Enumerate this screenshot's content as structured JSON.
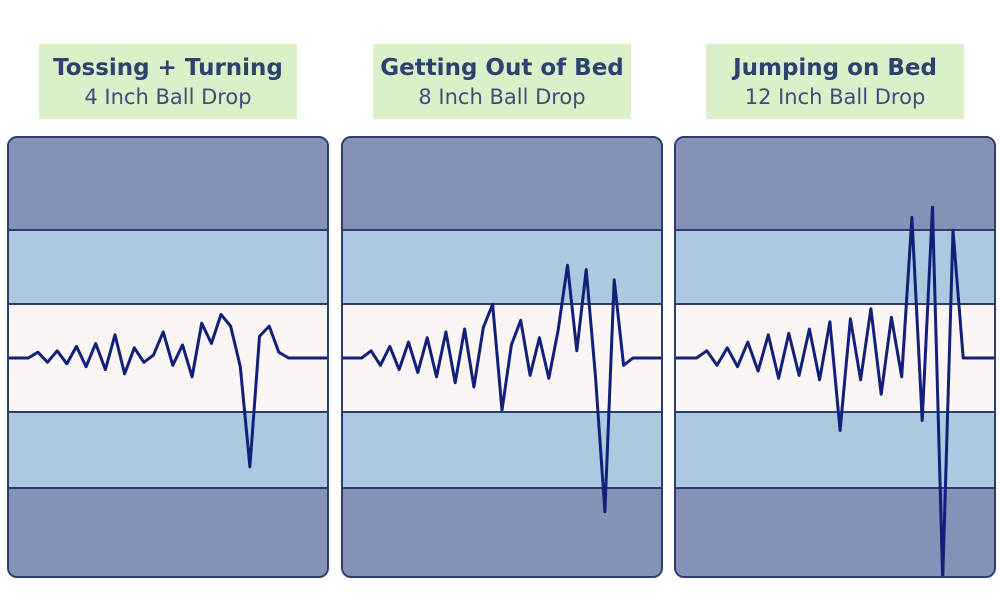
{
  "chart_data": [
    {
      "type": "line",
      "title": "Tossing + Turning",
      "subtitle": "4 Inch Ball Drop",
      "y": [
        0,
        0,
        0,
        0.4,
        -0.3,
        0.5,
        -0.4,
        0.8,
        -0.6,
        1.0,
        -0.8,
        1.6,
        -1.1,
        0.7,
        -0.3,
        0.2,
        1.8,
        -0.5,
        0.9,
        -1.3,
        2.4,
        1.0,
        3.0,
        2.2,
        -0.6,
        -7.5,
        1.5,
        2.2,
        0.4,
        0,
        0,
        0,
        0,
        0
      ]
    },
    {
      "type": "line",
      "title": "Getting Out of Bed",
      "subtitle": "8 Inch Ball Drop",
      "y": [
        0,
        0,
        0,
        0.5,
        -0.5,
        0.8,
        -0.8,
        1.1,
        -1.0,
        1.4,
        -1.3,
        1.8,
        -1.7,
        2.0,
        -2.0,
        2.1,
        3.7,
        -3.6,
        0.9,
        2.6,
        -1.2,
        1.4,
        -1.4,
        1.9,
        6.4,
        0.5,
        6.1,
        -1.3,
        -10.6,
        5.4,
        -0.5,
        0,
        0,
        0,
        0
      ]
    },
    {
      "type": "line",
      "title": "Jumping on Bed",
      "subtitle": "12 Inch Ball Drop",
      "y": [
        0,
        0,
        0,
        0.5,
        -0.5,
        0.7,
        -0.6,
        1.1,
        -0.9,
        1.6,
        -1.4,
        1.7,
        -1.2,
        2.0,
        -1.5,
        2.5,
        -5.0,
        2.7,
        -1.5,
        3.4,
        -2.5,
        2.8,
        -1.3,
        9.7,
        -4.3,
        10.4,
        -15.3,
        8.8,
        0,
        0,
        0,
        0
      ]
    }
  ]
}
